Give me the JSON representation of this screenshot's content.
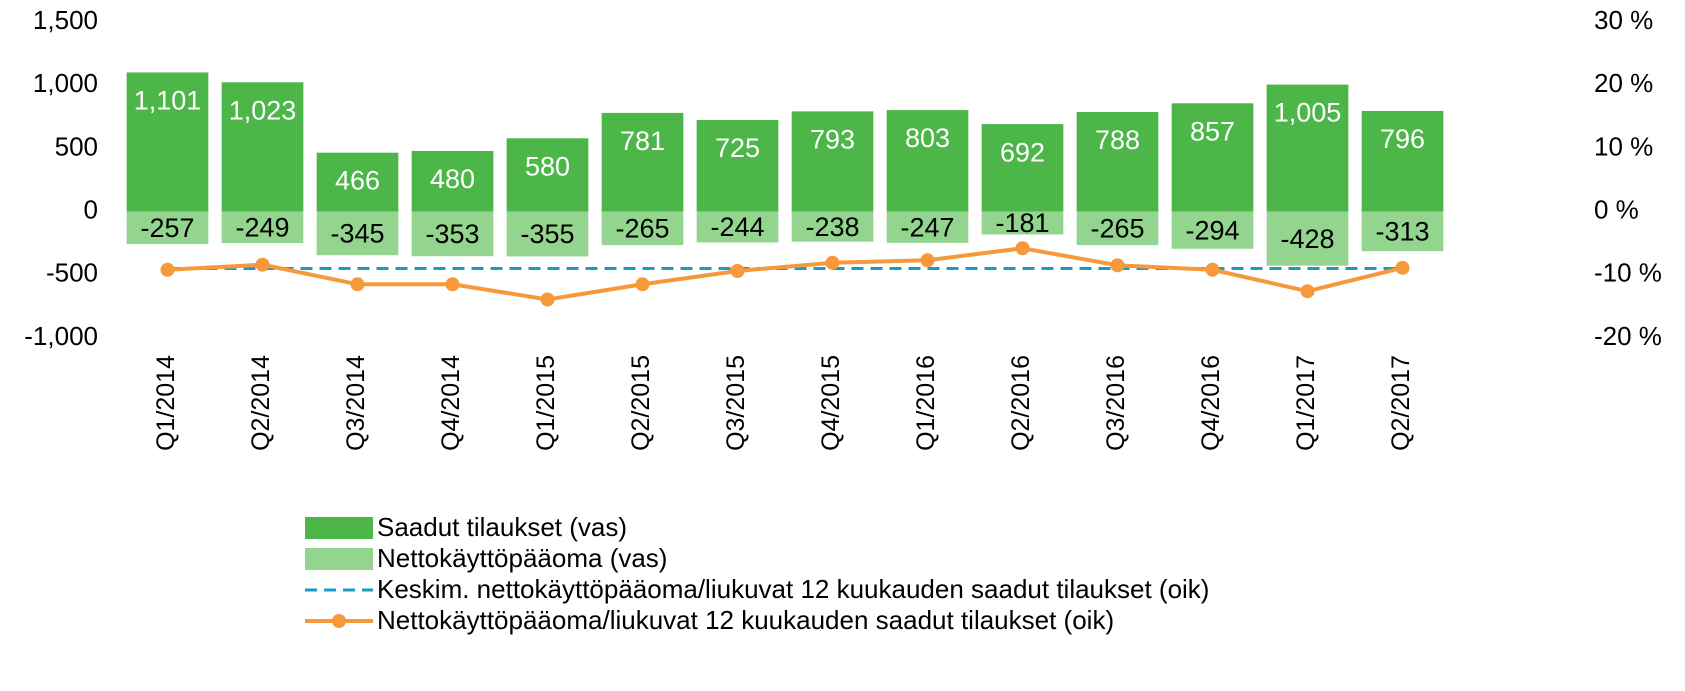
{
  "chart_data": {
    "type": "bar",
    "categories": [
      "Q1/2014",
      "Q2/2014",
      "Q3/2014",
      "Q4/2014",
      "Q1/2015",
      "Q2/2015",
      "Q3/2015",
      "Q4/2015",
      "Q1/2016",
      "Q2/2016",
      "Q3/2016",
      "Q4/2016",
      "Q1/2017",
      "Q2/2017"
    ],
    "series": [
      {
        "name": "Saadut tilaukset (vas)",
        "type": "bar",
        "color": "#4cb648",
        "values": [
          1101,
          1023,
          466,
          480,
          580,
          781,
          725,
          793,
          803,
          692,
          788,
          857,
          1005,
          796
        ],
        "value_labels": [
          "1,101",
          "1,023",
          "466",
          "480",
          "580",
          "781",
          "725",
          "793",
          "803",
          "692",
          "788",
          "857",
          "1,005",
          "796"
        ]
      },
      {
        "name": "Nettokäyttöpääoma (vas)",
        "type": "bar",
        "color": "#93d58f",
        "values": [
          -257,
          -249,
          -345,
          -353,
          -355,
          -265,
          -244,
          -238,
          -247,
          -181,
          -265,
          -294,
          -428,
          -313
        ]
      },
      {
        "name": "Keskim. nettokäyttöpääoma/liukuvat 12 kuukauden saadut tilaukset (oik)",
        "type": "line",
        "style": "dashed",
        "axis": "y2",
        "color": "#1a9bc5",
        "values": [
          -9,
          -9,
          -9,
          -9,
          -9,
          -9,
          -9,
          -9,
          -9,
          -9,
          -9,
          -9,
          -9,
          -9
        ]
      },
      {
        "name": "Nettokäyttöpääoma/liukuvat 12 kuukauden saadut tilaukset (oik)",
        "type": "line",
        "style": "markers",
        "axis": "y2",
        "color": "#f7983a",
        "values": [
          -9.2,
          -8.4,
          -11.5,
          -11.5,
          -13.9,
          -11.5,
          -9.4,
          -8.1,
          -7.7,
          -5.8,
          -8.5,
          -9.2,
          -12.6,
          -8.9
        ]
      }
    ],
    "ylim": [
      -1000,
      1500
    ],
    "yticks": [
      {
        "value": 1500,
        "label": "1,500"
      },
      {
        "value": 1000,
        "label": "1,000"
      },
      500,
      0,
      -500,
      {
        "value": -1000,
        "label": "-1,000"
      }
    ],
    "y2lim": [
      -20,
      30
    ],
    "y2ticks": [
      {
        "value": 30,
        "label": "30 %"
      },
      {
        "value": 20,
        "label": "20 %"
      },
      {
        "value": 10,
        "label": "10 %"
      },
      {
        "value": 0,
        "label": "0 %"
      },
      {
        "value": -10,
        "label": "-10 %"
      },
      {
        "value": -20,
        "label": "-20 %"
      }
    ],
    "legend": "bottom"
  }
}
